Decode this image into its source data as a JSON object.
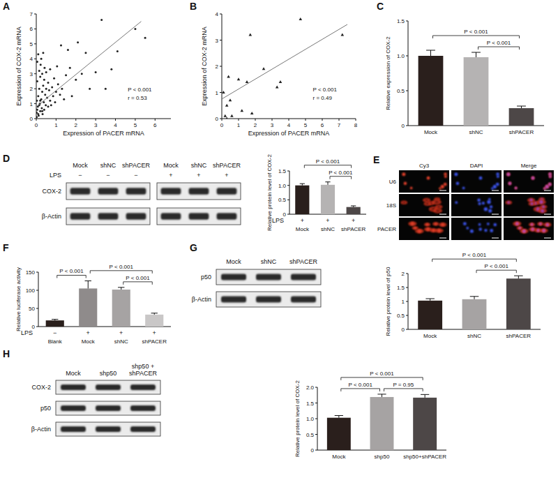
{
  "chart_data": [
    {
      "type": "scatter",
      "panel_label": "A",
      "x_label": "Expression of PACER mRNA",
      "y_label": "Expression of COX-2 mRNA",
      "x": [
        0.02,
        0.03,
        0.05,
        0.05,
        0.08,
        0.1,
        0.1,
        0.12,
        0.15,
        0.15,
        0.18,
        0.2,
        0.2,
        0.22,
        0.25,
        0.25,
        0.28,
        0.3,
        0.3,
        0.32,
        0.35,
        0.35,
        0.38,
        0.4,
        0.4,
        0.42,
        0.45,
        0.48,
        0.5,
        0.5,
        0.55,
        0.6,
        0.6,
        0.65,
        0.7,
        0.7,
        0.75,
        0.8,
        0.85,
        0.9,
        0.95,
        1.0,
        1.05,
        1.1,
        1.2,
        1.25,
        1.3,
        1.4,
        1.5,
        1.6,
        1.7,
        1.8,
        2.0,
        2.1,
        2.3,
        2.5,
        2.7,
        3.0,
        3.3,
        3.5,
        3.8,
        4.1,
        5.0,
        5.5,
        0.02,
        0.05,
        0.1,
        0.15,
        0.2,
        0.3
      ],
      "values": [
        0.4,
        1.2,
        2.5,
        3.8,
        0.8,
        1.5,
        4.3,
        0.2,
        2.0,
        3.2,
        1.0,
        0.5,
        2.8,
        3.6,
        1.3,
        4.0,
        0.7,
        1.8,
        3.0,
        0.3,
        2.2,
        4.4,
        1.1,
        0.6,
        2.6,
        3.4,
        1.6,
        0.9,
        2.0,
        3.1,
        1.4,
        0.8,
        2.4,
        1.9,
        1.2,
        3.3,
        0.9,
        2.1,
        1.5,
        2.7,
        1.1,
        1.8,
        3.5,
        2.3,
        1.6,
        4.9,
        2.0,
        1.3,
        2.9,
        4.6,
        3.4,
        1.5,
        2.6,
        5.1,
        3.0,
        4.4,
        2.0,
        3.1,
        6.6,
        2.0,
        3.3,
        4.5,
        6.0,
        5.4,
        0.1,
        0.6,
        0.3,
        0.9,
        1.2,
        0.5
      ],
      "color": "#222222",
      "marker": "dot",
      "fit": {
        "x": [
          0.05,
          5.3
        ],
        "values": [
          0.85,
          6.5
        ],
        "color": "#777777"
      },
      "xlim": [
        0,
        6.8
      ],
      "xticks": [
        0,
        1,
        2,
        3,
        4,
        5,
        6
      ],
      "ylim": [
        0,
        7
      ],
      "yticks": [
        0,
        1,
        2,
        3,
        4,
        5,
        6,
        7
      ],
      "annotations": [
        "P < 0.001",
        "r = 0.53"
      ]
    },
    {
      "type": "scatter",
      "panel_label": "B",
      "x_label": "Expression of PACER mRNA",
      "y_label": "Expression of COX-2 mRNA",
      "x": [
        0.1,
        0.2,
        0.3,
        0.4,
        0.5,
        0.6,
        1.0,
        1.5,
        1.7,
        1.8,
        2.5,
        3.3,
        3.5,
        4.7,
        7.2,
        0.3,
        1.2
      ],
      "values": [
        1.0,
        0.1,
        0.0,
        1.6,
        0.7,
        0.1,
        1.5,
        1.4,
        3.2,
        0.2,
        1.9,
        1.2,
        1.4,
        3.8,
        3.2,
        0.5,
        0.3
      ],
      "color": "#222222",
      "marker": "triangle",
      "fit": {
        "x": [
          0,
          7.5
        ],
        "values": [
          0.75,
          3.6
        ],
        "color": "#777777"
      },
      "xlim": [
        0,
        8
      ],
      "xticks": [
        0,
        1,
        2,
        3,
        4,
        5,
        6,
        7,
        8
      ],
      "ylim": [
        0,
        4
      ],
      "yticks": [
        0,
        1,
        2,
        3,
        4
      ],
      "annotations": [
        "P < 0.001",
        "r = 0.49"
      ]
    },
    {
      "type": "bar",
      "panel_label": "C",
      "y_label": "Relative expression of COX-2",
      "categories": [
        "Mock",
        "shNC",
        "shPACER"
      ],
      "values": [
        1.0,
        0.98,
        0.25
      ],
      "errors": [
        0.08,
        0.07,
        0.03
      ],
      "colors": [
        "#2a1f1c",
        "#b5b3b3",
        "#4d4747"
      ],
      "ylim": [
        0,
        1.5
      ],
      "yticks": [
        0,
        0.5,
        {
          "value": 1,
          "label": "1.0"
        },
        1.5
      ],
      "annotations": [
        {
          "from": 0,
          "to": 2,
          "text": "P < 0.001"
        },
        {
          "from": 1,
          "to": 2,
          "text": "P < 0.001"
        }
      ]
    },
    {
      "type": "bar",
      "y_label": "Relative protein level of COX-2",
      "categories": [
        "Mock",
        "shNC",
        "shPACER"
      ],
      "treatment": {
        "label": "LPS",
        "values": [
          "+",
          "+",
          "+"
        ]
      },
      "values": [
        1.0,
        1.02,
        0.25
      ],
      "errors": [
        0.06,
        0.1,
        0.04
      ],
      "colors": [
        "#2a1f1c",
        "#b5b3b3",
        "#4d4747"
      ],
      "ylim": [
        0,
        1.5
      ],
      "yticks": [
        0,
        0.5,
        {
          "value": 1,
          "label": "1.0"
        },
        1.5
      ],
      "annotations": [
        {
          "from": 0,
          "to": 2,
          "text": "P < 0.001"
        },
        {
          "from": 1,
          "to": 2,
          "text": "P < 0.001"
        }
      ]
    },
    {
      "type": "bar",
      "panel_label": "F",
      "y_label": "Relative luciferase activity",
      "categories": [
        "Blank",
        "Mock",
        "shNC",
        "shPACER"
      ],
      "treatment": {
        "label": "LPS",
        "values": [
          "−",
          "+",
          "+",
          "+"
        ]
      },
      "values": [
        17,
        105,
        102,
        33
      ],
      "errors": [
        3,
        21,
        6,
        4
      ],
      "colors": [
        "#2a1f1c",
        "#8f8b8b",
        "#a6a3a3",
        "#c9c7c7"
      ],
      "ylim": [
        0,
        150
      ],
      "yticks": [
        0,
        50,
        100,
        150
      ],
      "annotations": [
        {
          "from": 0,
          "to": 1,
          "text": "P < 0.001"
        },
        {
          "from": 1,
          "to": 3,
          "text": "P < 0.001"
        },
        {
          "from": 2,
          "to": 3,
          "text": "P < 0.001"
        }
      ]
    },
    {
      "type": "bar",
      "y_label": "Relative protein level of p50",
      "categories": [
        "Mock",
        "shNC",
        "shPACER"
      ],
      "values": [
        1.03,
        1.08,
        1.82
      ],
      "errors": [
        0.07,
        0.1,
        0.1
      ],
      "colors": [
        "#2a1f1c",
        "#a6a3a3",
        "#4d4747"
      ],
      "ylim": [
        0,
        2
      ],
      "yticks": [
        0,
        0.5,
        1,
        1.5,
        2
      ],
      "annotations": [
        {
          "from": 0,
          "to": 2,
          "text": "P < 0.001"
        },
        {
          "from": 1,
          "to": 2,
          "text": "P < 0.001"
        }
      ]
    },
    {
      "type": "bar",
      "y_label": "Relative protein level of COX-2",
      "categories": [
        "Mock",
        "shp50",
        "shp50+shPACER"
      ],
      "values": [
        1.03,
        1.69,
        1.67
      ],
      "errors": [
        0.07,
        0.09,
        0.1
      ],
      "colors": [
        "#2a1f1c",
        "#a6a3a3",
        "#4d4747"
      ],
      "ylim": [
        0,
        2
      ],
      "yticks": [
        0,
        0.5,
        {
          "value": 1,
          "label": "1.0"
        },
        1.5,
        {
          "value": 2,
          "label": "2.0"
        }
      ],
      "annotations": [
        {
          "from": 0,
          "to": 1,
          "text": "P < 0.001"
        },
        {
          "from": 1,
          "to": 2,
          "text": "P = 0.95"
        },
        {
          "from": 0,
          "to": 2,
          "text": "P < 0.001"
        }
      ]
    }
  ],
  "blots": [
    {
      "panel_label": "D",
      "lanes": [
        "Mock",
        "shNC",
        "shPACER",
        "Mock",
        "shNC",
        "shPACER"
      ],
      "treatment": {
        "label": "LPS",
        "values": [
          "−",
          "−",
          "−",
          "+",
          "+",
          "+"
        ]
      },
      "rows": [
        "COX-2",
        "β-Actin"
      ]
    },
    {
      "panel_label": "G",
      "lanes": [
        "Mock",
        "shNC",
        "shPACER"
      ],
      "rows": [
        "p50",
        "β-Actin"
      ]
    },
    {
      "panel_label": "H",
      "lanes": [
        "Mock",
        "shp50",
        "shp50 + shPACER"
      ],
      "rows": [
        "COX-2",
        "p50",
        "β-Actin"
      ]
    }
  ],
  "microscopy": {
    "panel_label": "E",
    "columns": [
      "Cy3",
      "DAPI",
      "Merge"
    ],
    "rows": [
      "U6",
      "18S",
      "PACER"
    ]
  }
}
